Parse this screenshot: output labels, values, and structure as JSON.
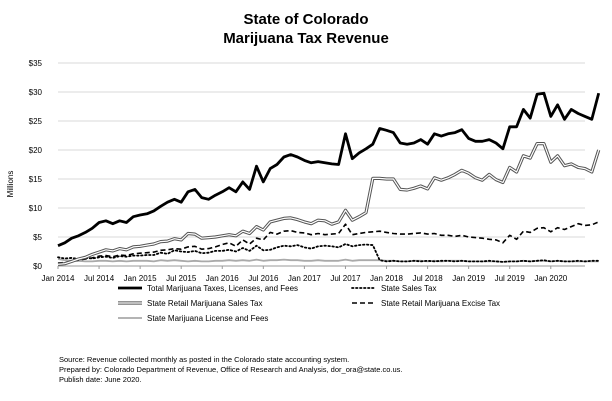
{
  "chart_data": {
    "type": "line",
    "title": [
      "State of Colorado",
      "Marijuana Tax Revenue"
    ],
    "ylabel": "Millions",
    "xlabel": "",
    "ylim": [
      0,
      35
    ],
    "yticks": [
      0,
      5,
      10,
      15,
      20,
      25,
      30,
      35
    ],
    "ytick_labels": [
      "$0",
      "$5",
      "$10",
      "$15",
      "$20",
      "$25",
      "$30",
      "$35"
    ],
    "xrange": [
      0,
      77
    ],
    "xticks": [
      0,
      6,
      12,
      18,
      24,
      30,
      36,
      42,
      48,
      54,
      60,
      66,
      72
    ],
    "xtick_labels": [
      "Jan 2014",
      "Jul 2014",
      "Jan 2015",
      "Jul 2015",
      "Jan 2016",
      "Jul 2016",
      "Jan 2017",
      "Jul 2017",
      "Jan 2018",
      "Jul 2018",
      "Jan 2019",
      "Jul 2019",
      "Jan 2020"
    ],
    "x_start": "Jan 2014",
    "x_end": "May 2020",
    "grid": "horizontal",
    "legend_position": "bottom",
    "series": [
      {
        "name": "Total Marijuana Taxes, Licenses, and Fees",
        "color": "#000000",
        "style": "solid-thick",
        "values": [
          3.5,
          4.0,
          4.8,
          5.2,
          5.8,
          6.5,
          7.5,
          7.8,
          7.3,
          7.8,
          7.5,
          8.5,
          8.8,
          9.0,
          9.5,
          10.3,
          11.0,
          11.5,
          11.0,
          12.8,
          13.2,
          11.8,
          11.5,
          12.2,
          12.8,
          13.5,
          12.8,
          14.5,
          13.2,
          17.2,
          14.5,
          16.8,
          17.5,
          18.8,
          19.2,
          18.8,
          18.2,
          17.8,
          18.0,
          17.8,
          17.6,
          17.5,
          22.8,
          18.5,
          19.5,
          20.2,
          21.0,
          23.7,
          23.4,
          23.0,
          21.2,
          21.0,
          21.2,
          21.8,
          21.0,
          22.8,
          22.4,
          22.8,
          23.0,
          23.5,
          22.0,
          21.5,
          21.5,
          21.8,
          21.2,
          20.2,
          24.0,
          24.0,
          27.0,
          25.5,
          29.6,
          29.8,
          25.8,
          27.8,
          25.3,
          27.0,
          26.3,
          25.8,
          25.3,
          29.8
        ]
      },
      {
        "name": "State Sales Tax",
        "color": "#000000",
        "style": "dotted",
        "values": [
          1.5,
          1.3,
          1.4,
          1.2,
          1.4,
          1.3,
          1.5,
          1.6,
          1.4,
          1.7,
          1.6,
          1.8,
          1.8,
          1.9,
          1.9,
          2.3,
          2.1,
          2.7,
          2.5,
          2.4,
          2.6,
          2.2,
          2.3,
          2.6,
          2.6,
          2.8,
          2.5,
          3.1,
          2.6,
          3.5,
          2.7,
          2.8,
          3.2,
          3.5,
          3.4,
          3.6,
          3.2,
          3.0,
          3.4,
          3.5,
          3.4,
          3.2,
          3.8,
          3.4,
          3.6,
          3.7,
          3.6,
          1.0,
          0.8,
          0.9,
          0.8,
          0.8,
          0.9,
          0.8,
          0.9,
          0.8,
          0.9,
          0.9,
          0.8,
          0.9,
          0.8,
          0.8,
          0.8,
          0.9,
          0.8,
          0.7,
          0.8,
          0.8,
          0.9,
          0.8,
          0.9,
          1.0,
          0.8,
          0.9,
          0.8,
          0.8,
          0.9,
          0.8,
          0.9,
          0.9
        ]
      },
      {
        "name": "State Retail Marijuana Sales Tax",
        "color": "#555555",
        "style": "double",
        "values": [
          0.3,
          0.4,
          0.8,
          1.2,
          1.5,
          2.0,
          2.4,
          2.8,
          2.6,
          3.0,
          2.8,
          3.3,
          3.4,
          3.6,
          3.8,
          4.2,
          4.3,
          4.7,
          4.5,
          5.6,
          5.5,
          4.8,
          4.9,
          5.0,
          5.2,
          5.4,
          5.2,
          6.0,
          5.6,
          6.8,
          6.2,
          7.6,
          7.9,
          8.2,
          8.3,
          8.0,
          7.6,
          7.3,
          7.9,
          7.8,
          7.2,
          7.6,
          9.6,
          7.9,
          8.5,
          9.2,
          15.1,
          15.1,
          15.0,
          15.0,
          13.2,
          13.1,
          13.4,
          13.8,
          13.3,
          15.2,
          14.8,
          15.2,
          15.8,
          16.5,
          16.0,
          15.2,
          14.8,
          15.8,
          14.9,
          14.4,
          17.0,
          16.2,
          19.0,
          18.6,
          21.1,
          21.1,
          17.9,
          19.0,
          17.3,
          17.6,
          17.0,
          16.8,
          16.2,
          20.0
        ]
      },
      {
        "name": "State Retail Marijuana Excise Tax",
        "color": "#000000",
        "style": "dashed",
        "values": [
          0.5,
          0.6,
          0.8,
          1.0,
          1.2,
          1.4,
          1.7,
          1.8,
          1.6,
          1.9,
          1.8,
          2.1,
          2.2,
          2.3,
          2.4,
          2.7,
          2.8,
          3.0,
          2.9,
          3.3,
          3.4,
          2.9,
          3.0,
          3.3,
          3.7,
          4.0,
          3.4,
          4.5,
          3.8,
          4.8,
          4.5,
          5.8,
          5.5,
          6.0,
          6.1,
          5.8,
          5.7,
          5.4,
          5.6,
          5.4,
          5.5,
          5.6,
          7.2,
          5.4,
          5.6,
          5.8,
          5.9,
          6.0,
          5.8,
          5.6,
          5.5,
          5.5,
          5.6,
          5.7,
          5.5,
          5.6,
          5.3,
          5.3,
          5.1,
          5.3,
          5.0,
          4.9,
          4.8,
          4.6,
          4.5,
          4.0,
          5.3,
          4.6,
          6.0,
          5.8,
          6.5,
          6.6,
          5.9,
          6.6,
          6.3,
          6.8,
          7.3,
          7.0,
          7.1,
          7.6
        ]
      },
      {
        "name": "State Marijuana License and Fees",
        "color": "#aaaaaa",
        "style": "solid",
        "values": [
          1.2,
          1.0,
          0.9,
          0.9,
          0.8,
          0.8,
          0.9,
          0.9,
          0.8,
          0.9,
          0.8,
          0.9,
          0.9,
          0.9,
          0.8,
          1.0,
          0.9,
          1.0,
          0.9,
          0.8,
          0.9,
          0.8,
          0.8,
          0.9,
          0.9,
          1.0,
          0.9,
          1.0,
          0.9,
          1.1,
          0.9,
          1.0,
          1.0,
          1.1,
          1.0,
          1.0,
          0.9,
          0.9,
          1.0,
          0.9,
          0.9,
          0.9,
          1.1,
          0.9,
          1.0,
          1.0,
          1.0,
          1.0,
          0.9,
          0.9,
          0.8,
          0.8,
          0.9,
          0.9,
          0.8,
          0.9,
          0.8,
          0.9,
          0.9,
          0.9,
          0.8,
          0.8,
          0.8,
          0.8,
          0.8,
          0.7,
          0.8,
          0.8,
          0.9,
          0.8,
          0.9,
          0.9,
          0.8,
          0.9,
          0.8,
          0.8,
          0.8,
          0.8,
          0.8,
          0.8
        ]
      }
    ]
  },
  "footer": {
    "source": "Source: Revenue collected monthly as posted in the Colorado state accounting system.",
    "prepared_by": "Prepared by: Colorado Department of Revenue, Office of Research and Analysis, dor_ora@state.co.us.",
    "publish_date": "Publish date: June 2020."
  }
}
